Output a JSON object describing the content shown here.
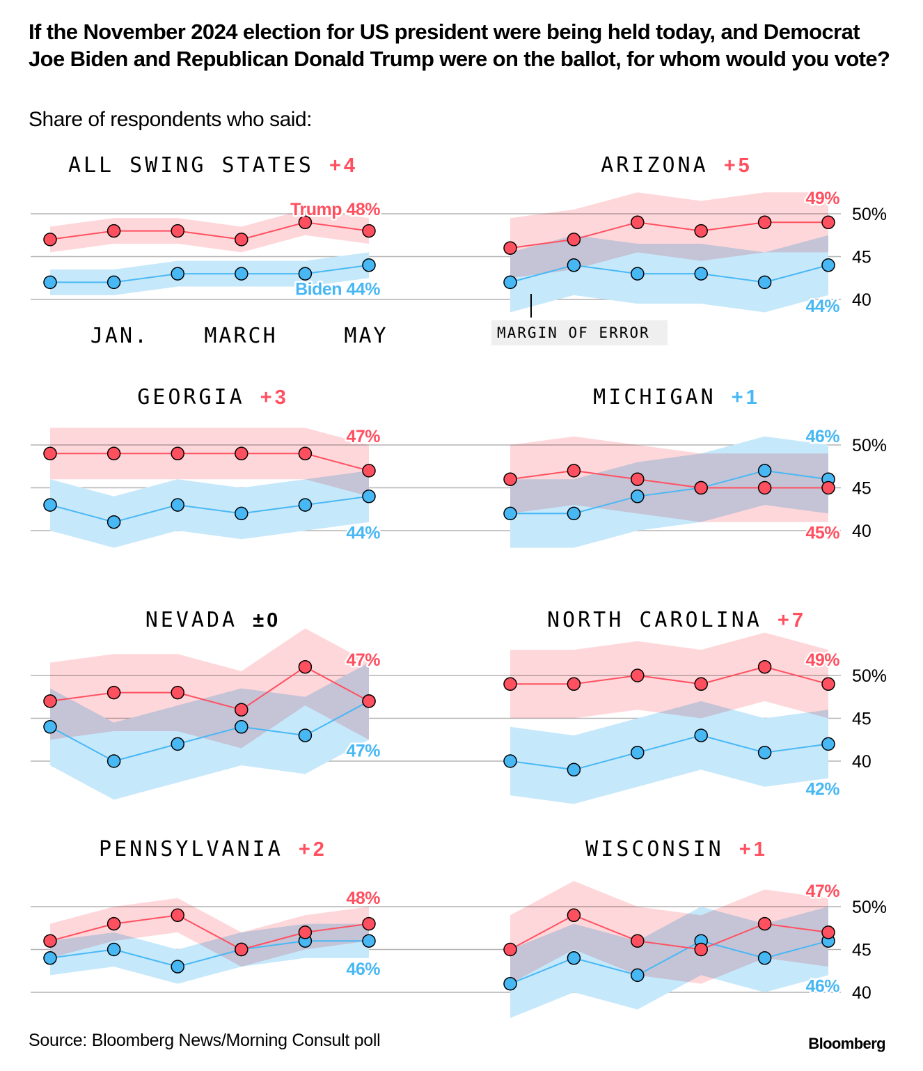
{
  "header": {
    "title": "If the November 2024 election for US president were being held today, and Democrat Joe Biden and Republican Donald Trump were on the ballot, for whom would you vote?",
    "subtitle": "Share of respondents who said:"
  },
  "footer": {
    "source": "Source: Bloomberg News/Morning Consult poll",
    "brand": "Bloomberg"
  },
  "colors": {
    "trump": "#ff5060",
    "trump_band": "#fdc9ce",
    "biden": "#48b8f5",
    "biden_band": "#c6e8fb",
    "overlap": "#d6b9c9",
    "grid": "#b3b3b3",
    "annotation_bg": "#efefef"
  },
  "chart_data": {
    "type": "line",
    "title": "If the November 2024 election for US president were being held today, and Democrat Joe Biden and Republican Donald Trump were on the ballot, for whom would you vote?",
    "subtitle": "Share of respondents who said:",
    "x_tick_labels": [
      "JAN.",
      "MARCH",
      "MAY"
    ],
    "y_ticks": [
      "50%",
      "45",
      "40"
    ],
    "ylim": [
      40,
      50
    ],
    "annotation": "MARGIN OF ERROR",
    "panels": [
      {
        "name": "ALL SWING STATES",
        "lead": "+4",
        "lead_party": "trump",
        "series": [
          {
            "name": "Trump",
            "values": [
              47,
              48,
              48,
              47,
              49,
              48
            ],
            "moe": 1.5,
            "end_label": "Trump 48%"
          },
          {
            "name": "Biden",
            "values": [
              42,
              42,
              43,
              43,
              43,
              44
            ],
            "moe": 1.5,
            "end_label": "Biden 44%"
          }
        ]
      },
      {
        "name": "ARIZONA",
        "lead": "+5",
        "lead_party": "trump",
        "series": [
          {
            "name": "Trump",
            "values": [
              46,
              47,
              49,
              48,
              49,
              49
            ],
            "moe": 3.5,
            "end_label": "49%"
          },
          {
            "name": "Biden",
            "values": [
              42,
              44,
              43,
              43,
              42,
              44
            ],
            "moe": 3.5,
            "end_label": "44%"
          }
        ]
      },
      {
        "name": "GEORGIA",
        "lead": "+3",
        "lead_party": "trump",
        "series": [
          {
            "name": "Trump",
            "values": [
              49,
              49,
              49,
              49,
              49,
              47
            ],
            "moe": 3,
            "end_label": "47%"
          },
          {
            "name": "Biden",
            "values": [
              43,
              41,
              43,
              42,
              43,
              44
            ],
            "moe": 3,
            "end_label": "44%"
          }
        ]
      },
      {
        "name": "MICHIGAN",
        "lead": "+1",
        "lead_party": "biden",
        "series": [
          {
            "name": "Trump",
            "values": [
              46,
              47,
              46,
              45,
              45,
              45
            ],
            "moe": 4,
            "end_label": "45%"
          },
          {
            "name": "Biden",
            "values": [
              42,
              42,
              44,
              45,
              47,
              46
            ],
            "moe": 4,
            "end_label": "46%"
          }
        ]
      },
      {
        "name": "NEVADA",
        "lead": "±0",
        "lead_party": "tie",
        "series": [
          {
            "name": "Trump",
            "values": [
              47,
              48,
              48,
              46,
              51,
              47
            ],
            "moe": 4.5,
            "end_label": "47%"
          },
          {
            "name": "Biden",
            "values": [
              44,
              40,
              42,
              44,
              43,
              47
            ],
            "moe": 4.5,
            "end_label": "47%"
          }
        ]
      },
      {
        "name": "NORTH CAROLINA",
        "lead": "+7",
        "lead_party": "trump",
        "series": [
          {
            "name": "Trump",
            "values": [
              49,
              49,
              50,
              49,
              51,
              49
            ],
            "moe": 4,
            "end_label": "49%"
          },
          {
            "name": "Biden",
            "values": [
              40,
              39,
              41,
              43,
              41,
              42
            ],
            "moe": 4,
            "end_label": "42%"
          }
        ]
      },
      {
        "name": "PENNSYLVANIA",
        "lead": "+2",
        "lead_party": "trump",
        "series": [
          {
            "name": "Trump",
            "values": [
              46,
              48,
              49,
              45,
              47,
              48
            ],
            "moe": 2,
            "end_label": "48%"
          },
          {
            "name": "Biden",
            "values": [
              44,
              45,
              43,
              45,
              46,
              46
            ],
            "moe": 2,
            "end_label": "46%"
          }
        ]
      },
      {
        "name": "WISCONSIN",
        "lead": "+1",
        "lead_party": "trump",
        "series": [
          {
            "name": "Trump",
            "values": [
              45,
              49,
              46,
              45,
              48,
              47
            ],
            "moe": 4,
            "end_label": "47%"
          },
          {
            "name": "Biden",
            "values": [
              41,
              44,
              42,
              46,
              44,
              46
            ],
            "moe": 4,
            "end_label": "46%"
          }
        ]
      }
    ]
  }
}
